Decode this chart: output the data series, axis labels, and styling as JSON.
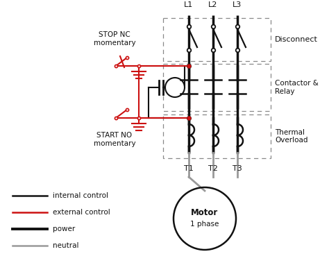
{
  "bg_color": "#ffffff",
  "black": "#111111",
  "red": "#cc1111",
  "gray": "#999999",
  "legend": [
    {
      "label": "internal control",
      "color": "#111111",
      "lw": 1.8
    },
    {
      "label": "external control",
      "color": "#cc1111",
      "lw": 1.8
    },
    {
      "label": "power",
      "color": "#111111",
      "lw": 2.8
    },
    {
      "label": "neutral",
      "color": "#999999",
      "lw": 1.8
    }
  ]
}
